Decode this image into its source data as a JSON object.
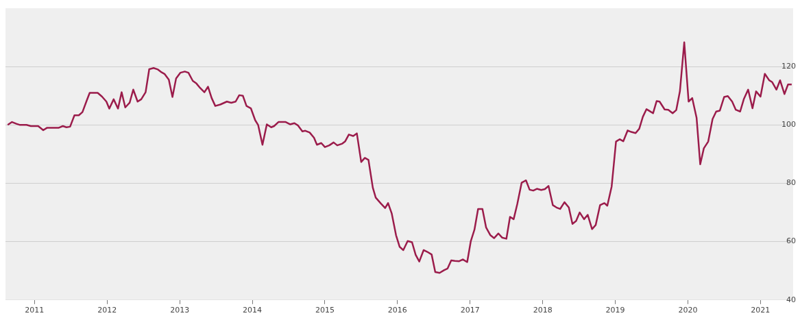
{
  "chart_data": {
    "type": "line",
    "xlim": [
      2010.6,
      2021.45
    ],
    "ylim": [
      40,
      140
    ],
    "xticks": [
      2011,
      2012,
      2013,
      2014,
      2015,
      2016,
      2017,
      2018,
      2019,
      2020,
      2021
    ],
    "yticks": [
      40,
      60,
      80,
      100,
      120
    ],
    "grid": "y",
    "legend": false,
    "marker": "none",
    "line_style": "solid",
    "series": [
      {
        "color": "#9b1c4b",
        "x": [
          2010.63,
          2010.69,
          2010.75,
          2010.8,
          2010.89,
          2010.95,
          2011.05,
          2011.08,
          2011.12,
          2011.17,
          2011.25,
          2011.33,
          2011.39,
          2011.44,
          2011.49,
          2011.55,
          2011.61,
          2011.66,
          2011.72,
          2011.76,
          2011.87,
          2011.93,
          2011.99,
          2012.03,
          2012.09,
          2012.15,
          2012.2,
          2012.25,
          2012.31,
          2012.36,
          2012.42,
          2012.47,
          2012.53,
          2012.58,
          2012.64,
          2012.7,
          2012.74,
          2012.79,
          2012.85,
          2012.9,
          2012.95,
          2013.01,
          2013.07,
          2013.12,
          2013.18,
          2013.23,
          2013.28,
          2013.34,
          2013.39,
          2013.44,
          2013.49,
          2013.56,
          2013.65,
          2013.71,
          2013.77,
          2013.82,
          2013.87,
          2013.92,
          2013.98,
          2014.04,
          2014.08,
          2014.14,
          2014.2,
          2014.26,
          2014.3,
          2014.36,
          2014.46,
          2014.52,
          2014.58,
          2014.63,
          2014.69,
          2014.73,
          2014.79,
          2014.85,
          2014.89,
          2014.95,
          2015.0,
          2015.06,
          2015.12,
          2015.17,
          2015.24,
          2015.28,
          2015.33,
          2015.39,
          2015.44,
          2015.5,
          2015.55,
          2015.6,
          2015.66,
          2015.7,
          2015.77,
          2015.83,
          2015.87,
          2015.92,
          2015.98,
          2016.03,
          2016.08,
          2016.14,
          2016.2,
          2016.25,
          2016.3,
          2016.36,
          2016.41,
          2016.47,
          2016.52,
          2016.58,
          2016.64,
          2016.69,
          2016.74,
          2016.79,
          2016.85,
          2016.9,
          2016.96,
          2017.01,
          2017.06,
          2017.11,
          2017.17,
          2017.22,
          2017.28,
          2017.33,
          2017.39,
          2017.44,
          2017.5,
          2017.55,
          2017.6,
          2017.65,
          2017.71,
          2017.77,
          2017.82,
          2017.87,
          2017.92,
          2017.98,
          2018.03,
          2018.08,
          2018.14,
          2018.19,
          2018.24,
          2018.3,
          2018.36,
          2018.41,
          2018.46,
          2018.51,
          2018.57,
          2018.62,
          2018.68,
          2018.73,
          2018.79,
          2018.85,
          2018.89,
          2018.95,
          2019.01,
          2019.06,
          2019.11,
          2019.17,
          2019.22,
          2019.28,
          2019.33,
          2019.38,
          2019.43,
          2019.47,
          2019.52,
          2019.57,
          2019.61,
          2019.68,
          2019.73,
          2019.79,
          2019.84,
          2019.89,
          2019.95,
          2020.01,
          2020.06,
          2020.12,
          2020.17,
          2020.22,
          2020.28,
          2020.34,
          2020.39,
          2020.44,
          2020.5,
          2020.55,
          2020.61,
          2020.66,
          2020.72,
          2020.77,
          2020.83,
          2020.89,
          2020.94,
          2021.0,
          2021.06,
          2021.12,
          2021.16,
          2021.22,
          2021.27,
          2021.33,
          2021.38,
          2021.43
        ],
        "values": [
          100.0,
          101.0,
          100.4,
          100.0,
          100.0,
          99.6,
          99.6,
          99.0,
          98.2,
          99.0,
          99.0,
          99.0,
          99.6,
          99.2,
          99.4,
          103.3,
          103.3,
          104.4,
          108.4,
          111.0,
          111.0,
          109.7,
          108.0,
          105.6,
          108.8,
          105.6,
          111.2,
          106.0,
          107.6,
          112.1,
          108.0,
          108.8,
          111.2,
          119.1,
          119.5,
          119.0,
          118.2,
          117.5,
          115.5,
          109.6,
          115.9,
          117.9,
          118.3,
          117.9,
          115.1,
          114.2,
          112.7,
          111.2,
          113.1,
          109.2,
          106.5,
          107.0,
          108.0,
          107.6,
          108.0,
          110.2,
          110.0,
          106.5,
          105.7,
          101.6,
          100.0,
          93.2,
          100.2,
          99.2,
          99.6,
          101.0,
          101.0,
          100.2,
          100.6,
          99.8,
          97.8,
          98.0,
          97.4,
          95.6,
          93.2,
          93.8,
          92.4,
          93.0,
          94.0,
          93.0,
          93.6,
          94.4,
          96.7,
          96.2,
          97.1,
          87.3,
          88.7,
          88.0,
          78.5,
          75.1,
          73.1,
          71.5,
          73.2,
          69.7,
          62.2,
          58.2,
          57.1,
          60.2,
          59.8,
          55.5,
          53.2,
          57.1,
          56.5,
          55.6,
          49.6,
          49.3,
          50.2,
          50.8,
          53.6,
          53.4,
          53.3,
          53.9,
          53.0,
          60.2,
          64.1,
          71.2,
          71.2,
          64.9,
          62.2,
          61.2,
          62.8,
          61.4,
          61.0,
          68.5,
          67.7,
          72.9,
          80.2,
          81.0,
          77.8,
          77.5,
          78.1,
          77.7,
          78.0,
          79.1,
          72.5,
          71.7,
          71.2,
          73.5,
          71.7,
          66.1,
          67.1,
          70.0,
          67.7,
          69.2,
          64.3,
          65.7,
          72.5,
          73.2,
          72.3,
          78.9,
          94.3,
          95.1,
          94.4,
          98.1,
          97.6,
          97.2,
          98.7,
          102.8,
          105.4,
          104.8,
          104.0,
          108.2,
          108.0,
          105.3,
          105.2,
          104.0,
          105.1,
          111.5,
          128.3,
          108.0,
          109.2,
          102.4,
          86.5,
          92.0,
          94.3,
          102.0,
          104.6,
          104.9,
          109.6,
          109.9,
          108.0,
          105.2,
          104.6,
          108.8,
          112.1,
          105.7,
          111.5,
          109.7,
          117.5,
          115.3,
          114.7,
          112.1,
          115.3,
          110.6,
          113.9,
          113.9
        ]
      }
    ]
  }
}
